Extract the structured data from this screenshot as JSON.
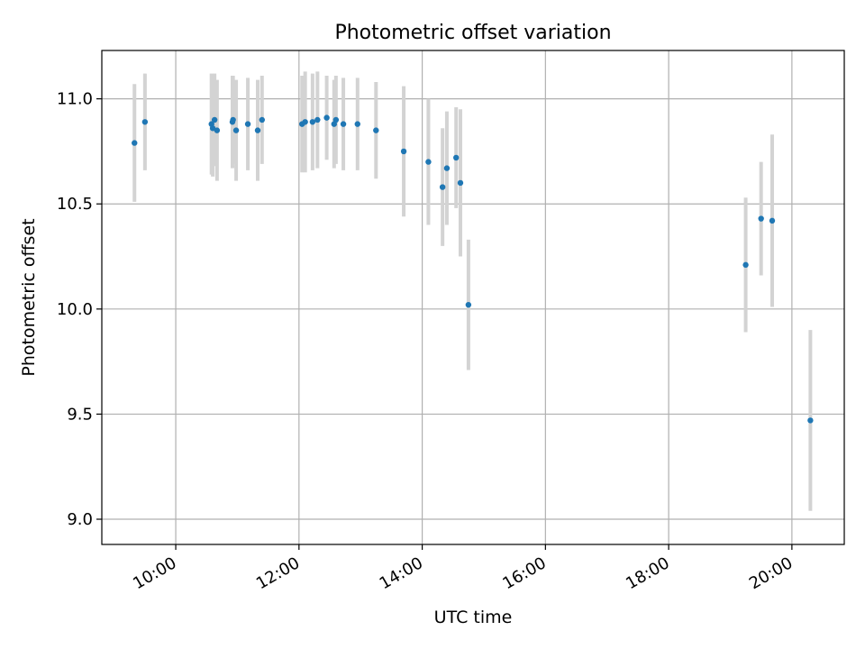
{
  "chart_data": {
    "type": "scatter",
    "title": "Photometric offset variation",
    "xlabel": "UTC time",
    "ylabel": "Photometric offset",
    "xlim": [
      8.8,
      20.85
    ],
    "ylim": [
      8.88,
      11.23
    ],
    "x_ticks": [
      {
        "value": 10,
        "label": "10:00"
      },
      {
        "value": 12,
        "label": "12:00"
      },
      {
        "value": 14,
        "label": "14:00"
      },
      {
        "value": 16,
        "label": "16:00"
      },
      {
        "value": 18,
        "label": "18:00"
      },
      {
        "value": 20,
        "label": "20:00"
      }
    ],
    "y_ticks": [
      {
        "value": 9.0,
        "label": "9.0"
      },
      {
        "value": 9.5,
        "label": "9.5"
      },
      {
        "value": 10.0,
        "label": "10.0"
      },
      {
        "value": 10.5,
        "label": "10.5"
      },
      {
        "value": 11.0,
        "label": "11.0"
      }
    ],
    "grid": true,
    "colors": {
      "marker": "#1f77b4",
      "errorbar": "#d3d3d3",
      "grid": "#b0b0b0"
    },
    "series": [
      {
        "name": "Photometric offset",
        "points": [
          {
            "x": 9.33,
            "y": 10.79,
            "err": 0.28
          },
          {
            "x": 9.5,
            "y": 10.89,
            "err": 0.23
          },
          {
            "x": 10.58,
            "y": 10.88,
            "err": 0.24
          },
          {
            "x": 10.6,
            "y": 10.86,
            "err": 0.23
          },
          {
            "x": 10.63,
            "y": 10.9,
            "err": 0.22
          },
          {
            "x": 10.67,
            "y": 10.85,
            "err": 0.24
          },
          {
            "x": 10.92,
            "y": 10.89,
            "err": 0.22
          },
          {
            "x": 10.93,
            "y": 10.9,
            "err": 0.21
          },
          {
            "x": 10.98,
            "y": 10.85,
            "err": 0.24
          },
          {
            "x": 11.17,
            "y": 10.88,
            "err": 0.22
          },
          {
            "x": 11.33,
            "y": 10.85,
            "err": 0.24
          },
          {
            "x": 11.4,
            "y": 10.9,
            "err": 0.21
          },
          {
            "x": 12.05,
            "y": 10.88,
            "err": 0.23
          },
          {
            "x": 12.1,
            "y": 10.89,
            "err": 0.24
          },
          {
            "x": 12.22,
            "y": 10.89,
            "err": 0.23
          },
          {
            "x": 12.3,
            "y": 10.9,
            "err": 0.23
          },
          {
            "x": 12.45,
            "y": 10.91,
            "err": 0.2
          },
          {
            "x": 12.57,
            "y": 10.88,
            "err": 0.21
          },
          {
            "x": 12.6,
            "y": 10.9,
            "err": 0.21
          },
          {
            "x": 12.72,
            "y": 10.88,
            "err": 0.22
          },
          {
            "x": 12.95,
            "y": 10.88,
            "err": 0.22
          },
          {
            "x": 13.25,
            "y": 10.85,
            "err": 0.23
          },
          {
            "x": 13.7,
            "y": 10.75,
            "err": 0.31
          },
          {
            "x": 14.1,
            "y": 10.7,
            "err": 0.3
          },
          {
            "x": 14.33,
            "y": 10.58,
            "err": 0.28
          },
          {
            "x": 14.4,
            "y": 10.67,
            "err": 0.27
          },
          {
            "x": 14.55,
            "y": 10.72,
            "err": 0.24
          },
          {
            "x": 14.62,
            "y": 10.6,
            "err": 0.35
          },
          {
            "x": 14.75,
            "y": 10.02,
            "err": 0.31
          },
          {
            "x": 19.25,
            "y": 10.21,
            "err": 0.32
          },
          {
            "x": 19.5,
            "y": 10.43,
            "err": 0.27
          },
          {
            "x": 19.68,
            "y": 10.42,
            "err": 0.41
          },
          {
            "x": 20.3,
            "y": 9.47,
            "err": 0.43
          }
        ]
      }
    ]
  }
}
